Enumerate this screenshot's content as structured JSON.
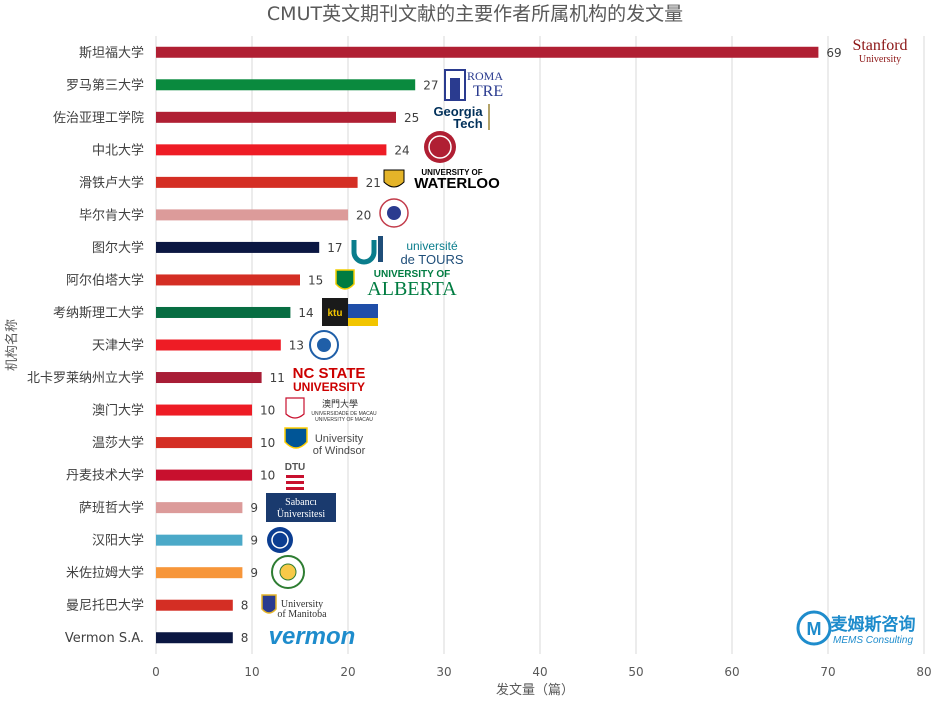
{
  "chart_data": {
    "type": "bar",
    "orientation": "horizontal",
    "title": "CMUT英文期刊文献的主要作者所属机构的发文量",
    "xlabel": "发文量（篇）",
    "ylabel": "机构名称",
    "xlim": [
      0,
      80
    ],
    "xticks": [
      0,
      10,
      20,
      30,
      40,
      50,
      60,
      70,
      80
    ],
    "grid": "vertical",
    "legend": "none",
    "categories": [
      "斯坦福大学",
      "罗马第三大学",
      "佐治亚理工学院",
      "中北大学",
      "滑铁卢大学",
      "毕尔肯大学",
      "图尔大学",
      "阿尔伯塔大学",
      "考纳斯理工大学",
      "天津大学",
      "北卡罗莱纳州立大学",
      "澳门大学",
      "温莎大学",
      "丹麦技术大学",
      "萨班哲大学",
      "汉阳大学",
      "米佐拉姆大学",
      "曼尼托巴大学",
      "Vermon S.A."
    ],
    "values": [
      69,
      27,
      25,
      24,
      21,
      20,
      17,
      15,
      14,
      13,
      11,
      10,
      10,
      10,
      9,
      9,
      9,
      8,
      8
    ],
    "colors": [
      "#b01f33",
      "#0a8a3e",
      "#b01f33",
      "#ee1c25",
      "#d42e24",
      "#dc9b9a",
      "#0b1742",
      "#d42e24",
      "#076d42",
      "#ee1c25",
      "#a81d36",
      "#ee1c25",
      "#d42e24",
      "#c8102e",
      "#dc9b9a",
      "#4ba9c8",
      "#f7963a",
      "#d42e24",
      "#0b1742"
    ]
  },
  "logos": {
    "stanford": [
      "Stanford",
      "University"
    ],
    "roma": [
      "ROMA",
      "TRE"
    ],
    "georgia": [
      "Georgia",
      "Tech"
    ],
    "waterloo": [
      "UNIVERSITY OF",
      "WATERLOO"
    ],
    "tours": [
      "université",
      "de TOURS"
    ],
    "alberta": [
      "UNIVERSITY OF",
      "ALBERTA"
    ],
    "ktu": [
      "ktu"
    ],
    "ncstate": [
      "NC STATE",
      "UNIVERSITY"
    ],
    "macau": [
      "澳門大學",
      "UNIVERSIDADE DE MACAU",
      "UNIVERSITY OF MACAU"
    ],
    "windsor": [
      "University",
      "of Windsor"
    ],
    "dtu": [
      "DTU"
    ],
    "sabanci": [
      "Sabancı",
      "Üniversitesi"
    ],
    "manitoba": [
      "University",
      "of Manitoba"
    ],
    "vermon": [
      "vermon"
    ]
  },
  "watermark": {
    "name_cn": "麦姆斯咨询",
    "name_en": "MEMS Consulting",
    "mark": "M"
  }
}
